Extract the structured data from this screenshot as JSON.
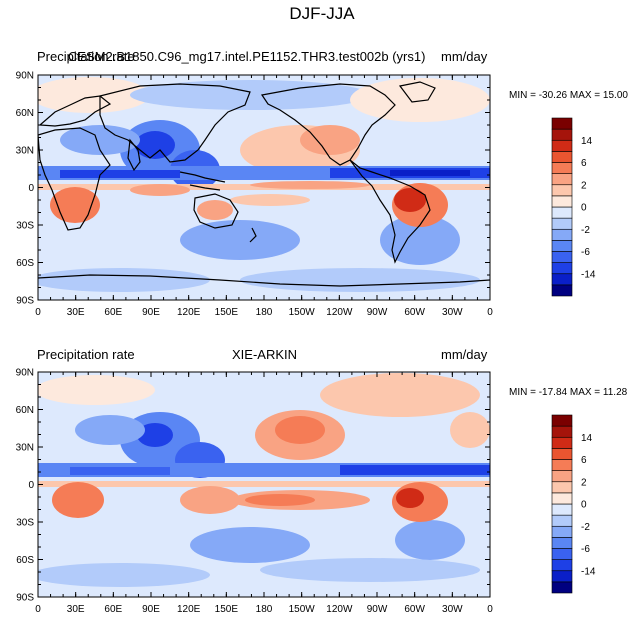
{
  "title": "DJF-JJA",
  "colorbar": {
    "colors": [
      "#000080",
      "#0a1fc8",
      "#1e40e6",
      "#3a62f0",
      "#5a86f4",
      "#85a9f7",
      "#b2cbfa",
      "#dde9fd",
      "#fde9dd",
      "#fcc7ad",
      "#f9a383",
      "#f57c56",
      "#ea5530",
      "#d02b16",
      "#a5140b",
      "#7a0000"
    ],
    "labels": [
      "14",
      "6",
      "2",
      "0",
      "-2",
      "-6",
      "-14"
    ]
  },
  "panels": [
    {
      "left_label": "Precipitation rate",
      "center_label": "CESM2.B1850.C96_mg17.intel.PE1152.THR3.test002b (yrs1)",
      "right_label": "mm/day",
      "minmax": "MIN = -30.26  MAX =  15.00"
    },
    {
      "left_label": "Precipitation rate",
      "center_label": "XIE-ARKIN",
      "right_label": "mm/day",
      "minmax": "MIN = -17.84  MAX =  11.28"
    }
  ],
  "axes": {
    "lat_ticks": [
      "90N",
      "60N",
      "30N",
      "0",
      "30S",
      "60S",
      "90S"
    ],
    "lon_ticks": [
      "0",
      "30E",
      "60E",
      "90E",
      "120E",
      "150E",
      "180",
      "150W",
      "120W",
      "90W",
      "60W",
      "30W",
      "0"
    ]
  },
  "legend_icons": {
    "map": "world-map-icon"
  }
}
